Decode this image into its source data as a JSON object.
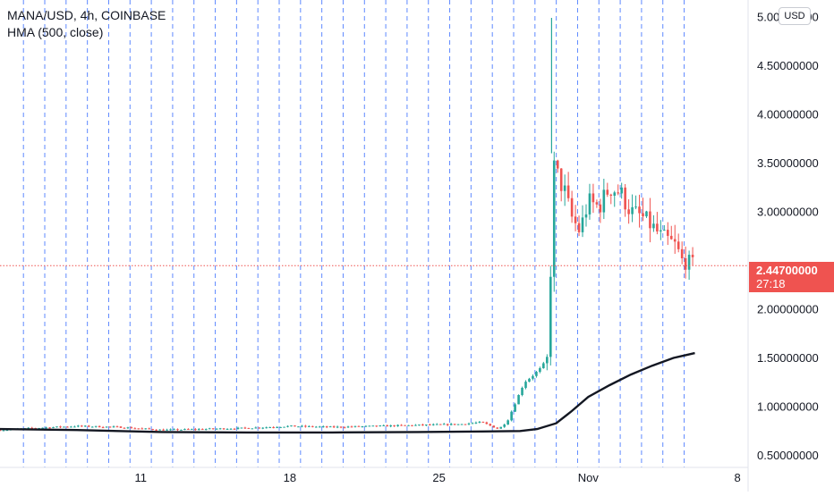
{
  "header": {
    "title": "MANA/USD, 4h, COINBASE",
    "indicator": "HMA (500, close)",
    "currency": "USD"
  },
  "last_price": {
    "value": "2.44700000",
    "countdown": "27:18"
  },
  "colors": {
    "up": "#26a69a",
    "down": "#ef5350",
    "hma": "#131722",
    "session_lines": "#2962ff",
    "price_line": "#ef5350",
    "axis_text": "#131722"
  },
  "chart_data": {
    "type": "candlestick",
    "symbol": "MANA/USD",
    "interval": "4h",
    "exchange": "COINBASE",
    "y_axis": {
      "ticks": [
        0.5,
        1.0,
        1.5,
        2.0,
        2.5,
        3.0,
        3.5,
        4.0,
        4.5,
        5.0
      ],
      "tick_labels": [
        "0.50000000",
        "1.00000000",
        "1.50000000",
        "2.00000000",
        "",
        "3.00000000",
        "3.50000000",
        "4.00000000",
        "4.50000000",
        "5.00000000"
      ],
      "range": [
        0.45,
        5.1
      ]
    },
    "x_axis": {
      "range_days": [
        4.4,
        39.5
      ],
      "ticks": [
        {
          "day": 11,
          "label": "11"
        },
        {
          "day": 18,
          "label": "18"
        },
        {
          "day": 25,
          "label": "25"
        },
        {
          "day": 32,
          "label": "Nov"
        },
        {
          "day": 39,
          "label": "8"
        }
      ]
    },
    "session_breaks_days": [
      5.5,
      6.5,
      7.5,
      8.5,
      9.5,
      10.5,
      11.5,
      12.5,
      13.5,
      14.5,
      15.5,
      16.5,
      17.5,
      18.5,
      19.5,
      20.5,
      21.5,
      22.5,
      23.5,
      24.5,
      25.5,
      26.5,
      27.5,
      28.5,
      29.5,
      30.5,
      31.5,
      32.5,
      33.5,
      34.5,
      35.5,
      36.5
    ],
    "price_anchors": {
      "days": [
        4.4,
        6.0,
        8.0,
        10.0,
        12.0,
        14.0,
        16.0,
        18.0,
        20.0,
        22.0,
        24.0,
        26.0,
        27.0,
        27.8,
        28.2,
        28.6,
        29.0,
        29.4,
        29.8,
        30.1,
        30.25,
        30.4,
        30.6,
        30.9,
        31.2,
        31.6,
        32.0,
        32.5,
        33.0,
        33.5,
        34.0,
        34.5,
        35.0,
        35.4,
        35.8,
        36.1,
        36.4,
        36.7,
        37.0
      ],
      "close": [
        0.76,
        0.78,
        0.8,
        0.79,
        0.76,
        0.77,
        0.78,
        0.8,
        0.79,
        0.8,
        0.81,
        0.82,
        0.84,
        0.77,
        0.85,
        1.05,
        1.25,
        1.32,
        1.4,
        1.5,
        2.5,
        3.45,
        3.35,
        3.2,
        2.95,
        2.8,
        3.1,
        3.05,
        3.25,
        3.2,
        3.0,
        2.95,
        2.85,
        2.75,
        2.7,
        2.65,
        2.5,
        2.48,
        2.447
      ]
    },
    "last_price": 2.447,
    "hma": {
      "name": "HMA (500, close)",
      "days": [
        4.4,
        8.0,
        12.0,
        16.0,
        20.0,
        24.0,
        27.0,
        28.8,
        29.6,
        30.5,
        31.2,
        32.0,
        33.0,
        34.0,
        35.0,
        36.0,
        37.0
      ],
      "values": [
        0.77,
        0.76,
        0.74,
        0.735,
        0.735,
        0.74,
        0.745,
        0.75,
        0.77,
        0.83,
        0.95,
        1.1,
        1.22,
        1.33,
        1.42,
        1.5,
        1.55
      ]
    }
  }
}
